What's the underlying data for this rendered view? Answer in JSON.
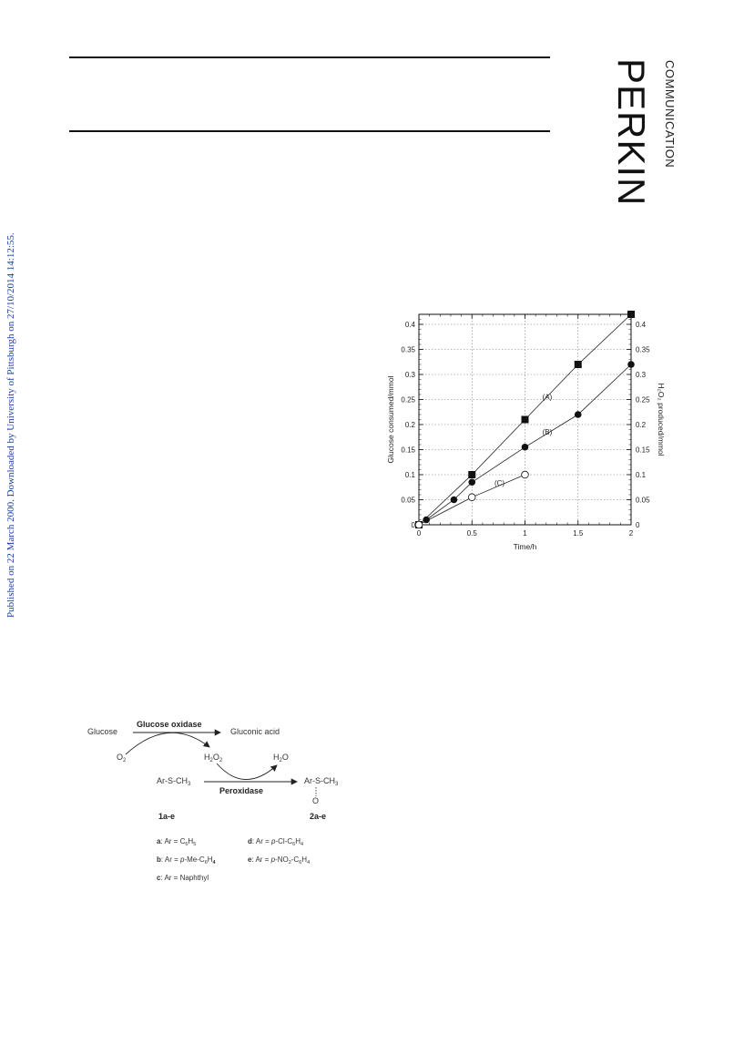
{
  "header": {
    "brand": "PERKIN",
    "section": "COMMUNICATION"
  },
  "sidenote": "Published on 22 March 2000. Downloaded by University of Pittsburgh on 27/10/2014 14:12:55.",
  "chart_data": {
    "type": "line",
    "xlabel": "Time/h",
    "ylabel": "Glucose consumed/mmol",
    "y2label": "H₂O₂ produced/mmol",
    "xlim": [
      0,
      2
    ],
    "ylim": [
      0,
      0.42
    ],
    "x_ticks": [
      "0",
      "0.5",
      "1",
      "1.5",
      "2"
    ],
    "y_ticks": [
      "0",
      "0.05",
      "0.1",
      "0.15",
      "0.2",
      "0.25",
      "0.3",
      "0.35",
      "0.4"
    ],
    "grid": true,
    "series": [
      {
        "name": "(A)",
        "marker": "square-filled",
        "points": [
          [
            0,
            0
          ],
          [
            0.5,
            0.1
          ],
          [
            1,
            0.21
          ],
          [
            1.5,
            0.32
          ],
          [
            2,
            0.42
          ]
        ]
      },
      {
        "name": "(B)",
        "marker": "circle-filled",
        "points": [
          [
            0.07,
            0.01
          ],
          [
            0.33,
            0.05
          ],
          [
            0.5,
            0.085
          ],
          [
            1,
            0.155
          ],
          [
            1.5,
            0.22
          ],
          [
            2,
            0.32
          ]
        ]
      },
      {
        "name": "(C)",
        "marker": "circle-open",
        "points": [
          [
            0,
            0
          ],
          [
            0.5,
            0.055
          ],
          [
            1,
            0.1
          ]
        ]
      }
    ]
  },
  "scheme": {
    "glucose": "Glucose",
    "enzyme1": "Glucose oxidase",
    "gluconic": "Gluconic acid",
    "o2": "O",
    "o2_sub": "2",
    "h2o2": {
      "a": "H",
      "b": "2",
      "c": "O",
      "d": "2"
    },
    "h2o": {
      "a": "H",
      "b": "2",
      "c": "O"
    },
    "substrate": {
      "a": "Ar-S-CH",
      "b": "3"
    },
    "enzyme2": "Peroxidase",
    "product": {
      "a": "Ar-S-CH",
      "b": "3"
    },
    "oxygen": "O",
    "label_left": "1a-e",
    "label_right": "2a-e",
    "defs": {
      "a": {
        "key": "a",
        "text": ": Ar = C",
        "s1": "6",
        "t2": "H",
        "s2": "5",
        "t3": ""
      },
      "b": {
        "key": "b",
        "text": ": Ar = ",
        "italic": "p",
        "rest": "-Me-C",
        "s1": "6",
        "t2": "H",
        "s2": "4"
      },
      "c": {
        "key": "c",
        "text": ": Ar = Naphthyl"
      },
      "d": {
        "key": "d",
        "text": ": Ar = ",
        "italic": "p",
        "rest": "-Cl-C",
        "s1": "6",
        "t2": "H",
        "s2": "4"
      },
      "e": {
        "key": "e",
        "text": ": Ar = ",
        "italic": "p",
        "rest": "-NO",
        "s0": "2",
        "rest2": "-C",
        "s1": "6",
        "t2": "H",
        "s2": "4"
      }
    }
  }
}
